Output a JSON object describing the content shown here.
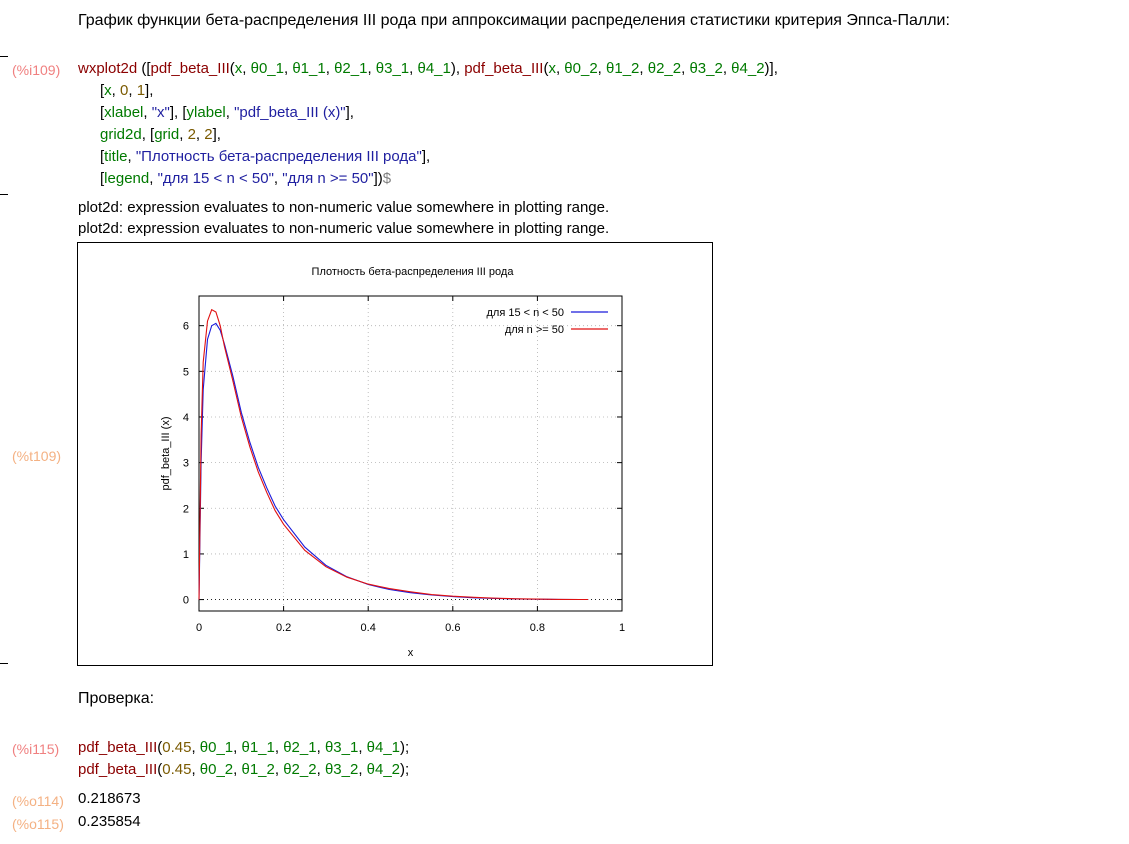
{
  "section_title": "График функции бета-распределения III рода при аппроксимации распределения статистики критерия Эппса-Палли:",
  "input1": {
    "label": "(%i109)",
    "lines": [
      [
        [
          "fn",
          "wxplot2d"
        ],
        [
          "plain",
          " (["
        ],
        [
          "fn",
          "pdf_beta_III"
        ],
        [
          "plain",
          "("
        ],
        [
          "var",
          "x"
        ],
        [
          "plain",
          ", "
        ],
        [
          "var",
          "θ0_1"
        ],
        [
          "plain",
          ", "
        ],
        [
          "var",
          "θ1_1"
        ],
        [
          "plain",
          ", "
        ],
        [
          "var",
          "θ2_1"
        ],
        [
          "plain",
          ", "
        ],
        [
          "var",
          "θ3_1"
        ],
        [
          "plain",
          ", "
        ],
        [
          "var",
          "θ4_1"
        ],
        [
          "plain",
          "), "
        ],
        [
          "fn",
          "pdf_beta_III"
        ],
        [
          "plain",
          "("
        ],
        [
          "var",
          "x"
        ],
        [
          "plain",
          ", "
        ],
        [
          "var",
          "θ0_2"
        ],
        [
          "plain",
          ", "
        ],
        [
          "var",
          "θ1_2"
        ],
        [
          "plain",
          ", "
        ],
        [
          "var",
          "θ2_2"
        ],
        [
          "plain",
          ", "
        ],
        [
          "var",
          "θ3_2"
        ],
        [
          "plain",
          ", "
        ],
        [
          "var",
          "θ4_2"
        ],
        [
          "plain",
          ")],"
        ]
      ],
      [
        [
          "plain",
          "["
        ],
        [
          "var",
          "x"
        ],
        [
          "plain",
          ", "
        ],
        [
          "num",
          "0"
        ],
        [
          "plain",
          ", "
        ],
        [
          "num",
          "1"
        ],
        [
          "plain",
          "],"
        ]
      ],
      [
        [
          "plain",
          "["
        ],
        [
          "opt",
          "xlabel"
        ],
        [
          "plain",
          ", "
        ],
        [
          "str",
          "\"x\""
        ],
        [
          "plain",
          "], ["
        ],
        [
          "opt",
          "ylabel"
        ],
        [
          "plain",
          ", "
        ],
        [
          "str",
          "\"pdf_beta_III (x)\""
        ],
        [
          "plain",
          "],"
        ]
      ],
      [
        [
          "opt",
          "grid2d"
        ],
        [
          "plain",
          ", ["
        ],
        [
          "opt",
          "grid"
        ],
        [
          "plain",
          ", "
        ],
        [
          "num",
          "2"
        ],
        [
          "plain",
          ", "
        ],
        [
          "num",
          "2"
        ],
        [
          "plain",
          "],"
        ]
      ],
      [
        [
          "plain",
          "["
        ],
        [
          "opt",
          "title"
        ],
        [
          "plain",
          ", "
        ],
        [
          "str",
          "\"Плотность бета-распределения III рода\""
        ],
        [
          "plain",
          "],"
        ]
      ],
      [
        [
          "plain",
          "["
        ],
        [
          "opt",
          "legend"
        ],
        [
          "plain",
          ", "
        ],
        [
          "str",
          "\"для 15 < n < 50\""
        ],
        [
          "plain",
          ", "
        ],
        [
          "str",
          "\"для n >= 50\""
        ],
        [
          "plain",
          "])"
        ],
        [
          "dollar",
          "$"
        ]
      ]
    ]
  },
  "warnings": [
    "plot2d: expression evaluates to non-numeric value somewhere in plotting range.",
    "plot2d: expression evaluates to non-numeric value somewhere in plotting range."
  ],
  "plot_label": "(%t109)",
  "chart_data": {
    "type": "line",
    "title": "Плотность бета-распределения III рода",
    "xlabel": "x",
    "ylabel": "pdf_beta_III (x)",
    "xlim": [
      0,
      1
    ],
    "ylim": [
      -0.25,
      6.65
    ],
    "xticks": [
      "0",
      "0.2",
      "0.4",
      "0.6",
      "0.8",
      "1"
    ],
    "yticks": [
      "0",
      "1",
      "2",
      "3",
      "4",
      "5",
      "6"
    ],
    "grid": true,
    "legend_position": "top-right",
    "series": [
      {
        "name": "для 15 < n < 50",
        "color": "#1a1adb",
        "x": [
          0.0,
          0.005,
          0.01,
          0.02,
          0.03,
          0.04,
          0.05,
          0.06,
          0.08,
          0.1,
          0.12,
          0.14,
          0.16,
          0.18,
          0.2,
          0.25,
          0.3,
          0.35,
          0.4,
          0.45,
          0.5,
          0.55,
          0.6,
          0.65,
          0.7,
          0.75,
          0.8,
          0.85,
          0.9,
          0.92
        ],
        "y": [
          0.0,
          3.0,
          4.6,
          5.7,
          6.0,
          6.05,
          5.9,
          5.6,
          4.9,
          4.1,
          3.45,
          2.9,
          2.45,
          2.05,
          1.75,
          1.15,
          0.75,
          0.5,
          0.33,
          0.22,
          0.15,
          0.1,
          0.065,
          0.04,
          0.025,
          0.015,
          0.008,
          0.004,
          0.002,
          0.001
        ]
      },
      {
        "name": "для n >= 50",
        "color": "#e01010",
        "x": [
          0.0,
          0.005,
          0.01,
          0.02,
          0.03,
          0.04,
          0.05,
          0.06,
          0.08,
          0.1,
          0.12,
          0.14,
          0.16,
          0.18,
          0.2,
          0.25,
          0.3,
          0.35,
          0.4,
          0.45,
          0.5,
          0.55,
          0.6,
          0.65,
          0.7,
          0.75,
          0.8,
          0.85,
          0.9,
          0.92
        ],
        "y": [
          0.0,
          3.6,
          5.2,
          6.1,
          6.35,
          6.3,
          6.0,
          5.55,
          4.8,
          4.0,
          3.35,
          2.8,
          2.35,
          1.95,
          1.65,
          1.08,
          0.72,
          0.49,
          0.34,
          0.24,
          0.17,
          0.11,
          0.075,
          0.05,
          0.03,
          0.018,
          0.01,
          0.005,
          0.002,
          0.001
        ]
      }
    ]
  },
  "check_heading": "Проверка:",
  "input2": {
    "label": "(%i115)",
    "lines": [
      [
        [
          "fn",
          "pdf_beta_III"
        ],
        [
          "plain",
          "("
        ],
        [
          "num",
          "0.45"
        ],
        [
          "plain",
          ", "
        ],
        [
          "var",
          "θ0_1"
        ],
        [
          "plain",
          ", "
        ],
        [
          "var",
          "θ1_1"
        ],
        [
          "plain",
          ", "
        ],
        [
          "var",
          "θ2_1"
        ],
        [
          "plain",
          ", "
        ],
        [
          "var",
          "θ3_1"
        ],
        [
          "plain",
          ", "
        ],
        [
          "var",
          "θ4_1"
        ],
        [
          "plain",
          ");"
        ]
      ],
      [
        [
          "fn",
          "pdf_beta_III"
        ],
        [
          "plain",
          "("
        ],
        [
          "num",
          "0.45"
        ],
        [
          "plain",
          ", "
        ],
        [
          "var",
          "θ0_2"
        ],
        [
          "plain",
          ", "
        ],
        [
          "var",
          "θ1_2"
        ],
        [
          "plain",
          ", "
        ],
        [
          "var",
          "θ2_2"
        ],
        [
          "plain",
          ", "
        ],
        [
          "var",
          "θ3_2"
        ],
        [
          "plain",
          ", "
        ],
        [
          "var",
          "θ4_2"
        ],
        [
          "plain",
          ");"
        ]
      ]
    ]
  },
  "outputs": [
    {
      "label": "(%o114)",
      "value": "0.218673"
    },
    {
      "label": "(%o115)",
      "value": "0.235854"
    }
  ],
  "colors": {
    "input_label": "#f08080",
    "output_label": "#f4b183",
    "function": "#8b0000",
    "variable": "#007a00",
    "string": "#1f1fa0",
    "number": "#7a5a00"
  }
}
